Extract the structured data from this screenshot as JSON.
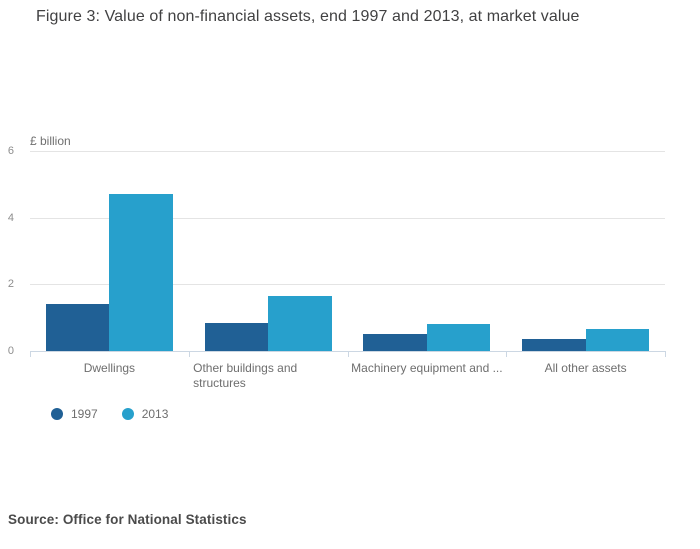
{
  "title": "Figure 3: Value of non-financial assets, end 1997 and 2013, at market value",
  "source_note": "Source: Office for National Statistics",
  "chart_data": {
    "type": "bar",
    "title": "Figure 3: Value of non-financial assets, end 1997 and 2013, at market value",
    "ylabel": "£ billion",
    "xlabel": "",
    "ylim": [
      0,
      6
    ],
    "yticks": [
      0,
      2,
      4,
      6
    ],
    "grid": true,
    "legend_position": "bottom-left",
    "categories": [
      [
        "Dwellings"
      ],
      [
        "Other buildings and",
        "structures"
      ],
      [
        "Machinery equipment and ..."
      ],
      [
        "All other assets"
      ]
    ],
    "series": [
      {
        "name": "1997",
        "color": "#206095",
        "values": [
          1.4,
          0.85,
          0.5,
          0.35
        ]
      },
      {
        "name": "2013",
        "color": "#27a0cc",
        "values": [
          4.7,
          1.65,
          0.8,
          0.65
        ]
      }
    ]
  },
  "colors": {
    "series_1997": "#206095",
    "series_2013": "#27a0cc",
    "gridline": "#e4e4e4",
    "axis_line": "#ccd7e3",
    "title_text": "#414142",
    "label_text": "#6e6e6e",
    "tick_text": "#8d8d8d",
    "source_text": "#4b4b4b"
  }
}
